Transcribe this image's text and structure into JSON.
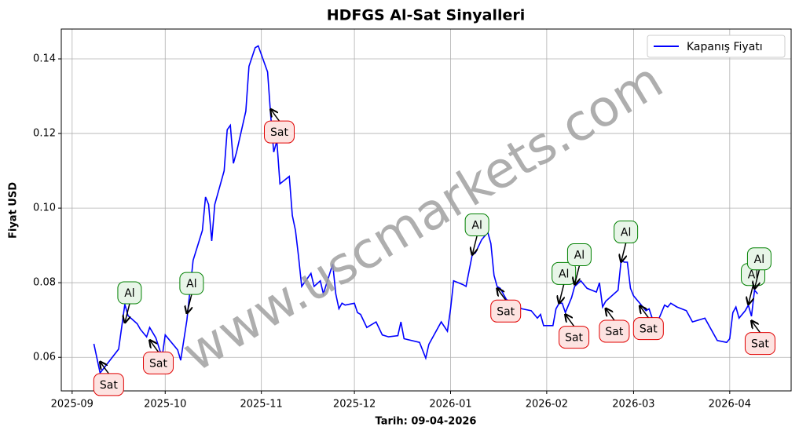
{
  "chart_data": {
    "type": "line",
    "title": "HDFGS Al-Sat Sinyalleri",
    "x_label": "Tarih: 09-04-2026",
    "y_label": "Fiyat USD",
    "watermark": "www.uscmarkets.com",
    "x": [
      7,
      9,
      15,
      17,
      18,
      21,
      22,
      24,
      25,
      27,
      29,
      30,
      34,
      35,
      37,
      39,
      42,
      43,
      44,
      45,
      46,
      49,
      50,
      51,
      52,
      53,
      56,
      57,
      59,
      60,
      63,
      64,
      65,
      66,
      67,
      70,
      71,
      72,
      73,
      74,
      77,
      78,
      80,
      81,
      84,
      85,
      86,
      87,
      88,
      91,
      92,
      93,
      95,
      98,
      100,
      102,
      105,
      106,
      107,
      112,
      114,
      115,
      119,
      121,
      122,
      123,
      126,
      127,
      129,
      130,
      132,
      134,
      135,
      136,
      137,
      138,
      140,
      143,
      145,
      148,
      150,
      151,
      152,
      155,
      156,
      157,
      158,
      159,
      161,
      162,
      164,
      165,
      166,
      169,
      170,
      171,
      172,
      176,
      177,
      178,
      179,
      180,
      181,
      183,
      185,
      186,
      187,
      189,
      191,
      192,
      193,
      195,
      198,
      200,
      204,
      208,
      211,
      212,
      213,
      214,
      215,
      217,
      218,
      219,
      220,
      221
    ],
    "series": [
      {
        "name": "Kapanış Fiyatı",
        "color": "#0000ff",
        "values": [
          0.0636,
          0.0558,
          0.0622,
          0.0742,
          0.0712,
          0.069,
          0.0675,
          0.0655,
          0.068,
          0.0652,
          0.06,
          0.066,
          0.062,
          0.0592,
          0.07,
          0.086,
          0.094,
          0.103,
          0.101,
          0.0912,
          0.101,
          0.11,
          0.121,
          0.1222,
          0.112,
          0.115,
          0.126,
          0.138,
          0.143,
          0.1435,
          0.1365,
          0.125,
          0.115,
          0.118,
          0.1065,
          0.1085,
          0.098,
          0.094,
          0.087,
          0.079,
          0.0825,
          0.079,
          0.0805,
          0.077,
          0.085,
          0.077,
          0.073,
          0.0745,
          0.074,
          0.0745,
          0.072,
          0.0715,
          0.068,
          0.0695,
          0.066,
          0.0655,
          0.0658,
          0.0695,
          0.065,
          0.064,
          0.0598,
          0.0635,
          0.0695,
          0.067,
          0.073,
          0.0805,
          0.0795,
          0.079,
          0.0875,
          0.088,
          0.0915,
          0.0935,
          0.0905,
          0.082,
          0.079,
          0.0785,
          0.0755,
          0.074,
          0.073,
          0.0725,
          0.0705,
          0.0715,
          0.0685,
          0.0685,
          0.073,
          0.0745,
          0.0745,
          0.072,
          0.076,
          0.079,
          0.0805,
          0.0795,
          0.0785,
          0.0775,
          0.08,
          0.0735,
          0.075,
          0.078,
          0.086,
          0.0855,
          0.0855,
          0.0785,
          0.0765,
          0.0745,
          0.0725,
          0.073,
          0.0705,
          0.07,
          0.074,
          0.0735,
          0.0745,
          0.0735,
          0.0725,
          0.0695,
          0.0705,
          0.0645,
          0.064,
          0.065,
          0.072,
          0.0735,
          0.0705,
          0.0725,
          0.074,
          0.071,
          0.078,
          0.077
        ]
      }
    ],
    "annotations": [
      {
        "text": "Sat",
        "x": 9,
        "y": 0.0588
      },
      {
        "text": "Al",
        "x": 17,
        "y": 0.0693
      },
      {
        "text": "Sat",
        "x": 25,
        "y": 0.0646
      },
      {
        "text": "Al",
        "x": 37,
        "y": 0.0718
      },
      {
        "text": "Sat",
        "x": 64,
        "y": 0.1265
      },
      {
        "text": "Al",
        "x": 129,
        "y": 0.0875
      },
      {
        "text": "Sat",
        "x": 137,
        "y": 0.0785
      },
      {
        "text": "Al",
        "x": 157,
        "y": 0.0745
      },
      {
        "text": "Al",
        "x": 162,
        "y": 0.0795
      },
      {
        "text": "Sat",
        "x": 159,
        "y": 0.0715
      },
      {
        "text": "Sat",
        "x": 172,
        "y": 0.0731
      },
      {
        "text": "Al",
        "x": 177,
        "y": 0.0856
      },
      {
        "text": "Sat",
        "x": 183,
        "y": 0.0738
      },
      {
        "text": "Al",
        "x": 218,
        "y": 0.0742
      },
      {
        "text": "Al",
        "x": 220,
        "y": 0.0784
      },
      {
        "text": "Sat",
        "x": 219,
        "y": 0.0698
      }
    ],
    "xlim": [
      -3.5,
      231.8
    ],
    "ylim": [
      0.051,
      0.148
    ],
    "xticks": [
      {
        "value": 0,
        "label": "2025-09"
      },
      {
        "value": 30,
        "label": "2025-10"
      },
      {
        "value": 61,
        "label": "2025-11"
      },
      {
        "value": 91,
        "label": "2025-12"
      },
      {
        "value": 122,
        "label": "2026-01"
      },
      {
        "value": 153,
        "label": "2026-02"
      },
      {
        "value": 181,
        "label": "2026-03"
      },
      {
        "value": 212,
        "label": "2026-04"
      }
    ],
    "yticks": [
      0.06,
      0.08,
      {
        "value": 0.1,
        "label": "0.10"
      },
      0.12,
      0.14
    ],
    "grid": true,
    "legend": "upper right"
  }
}
